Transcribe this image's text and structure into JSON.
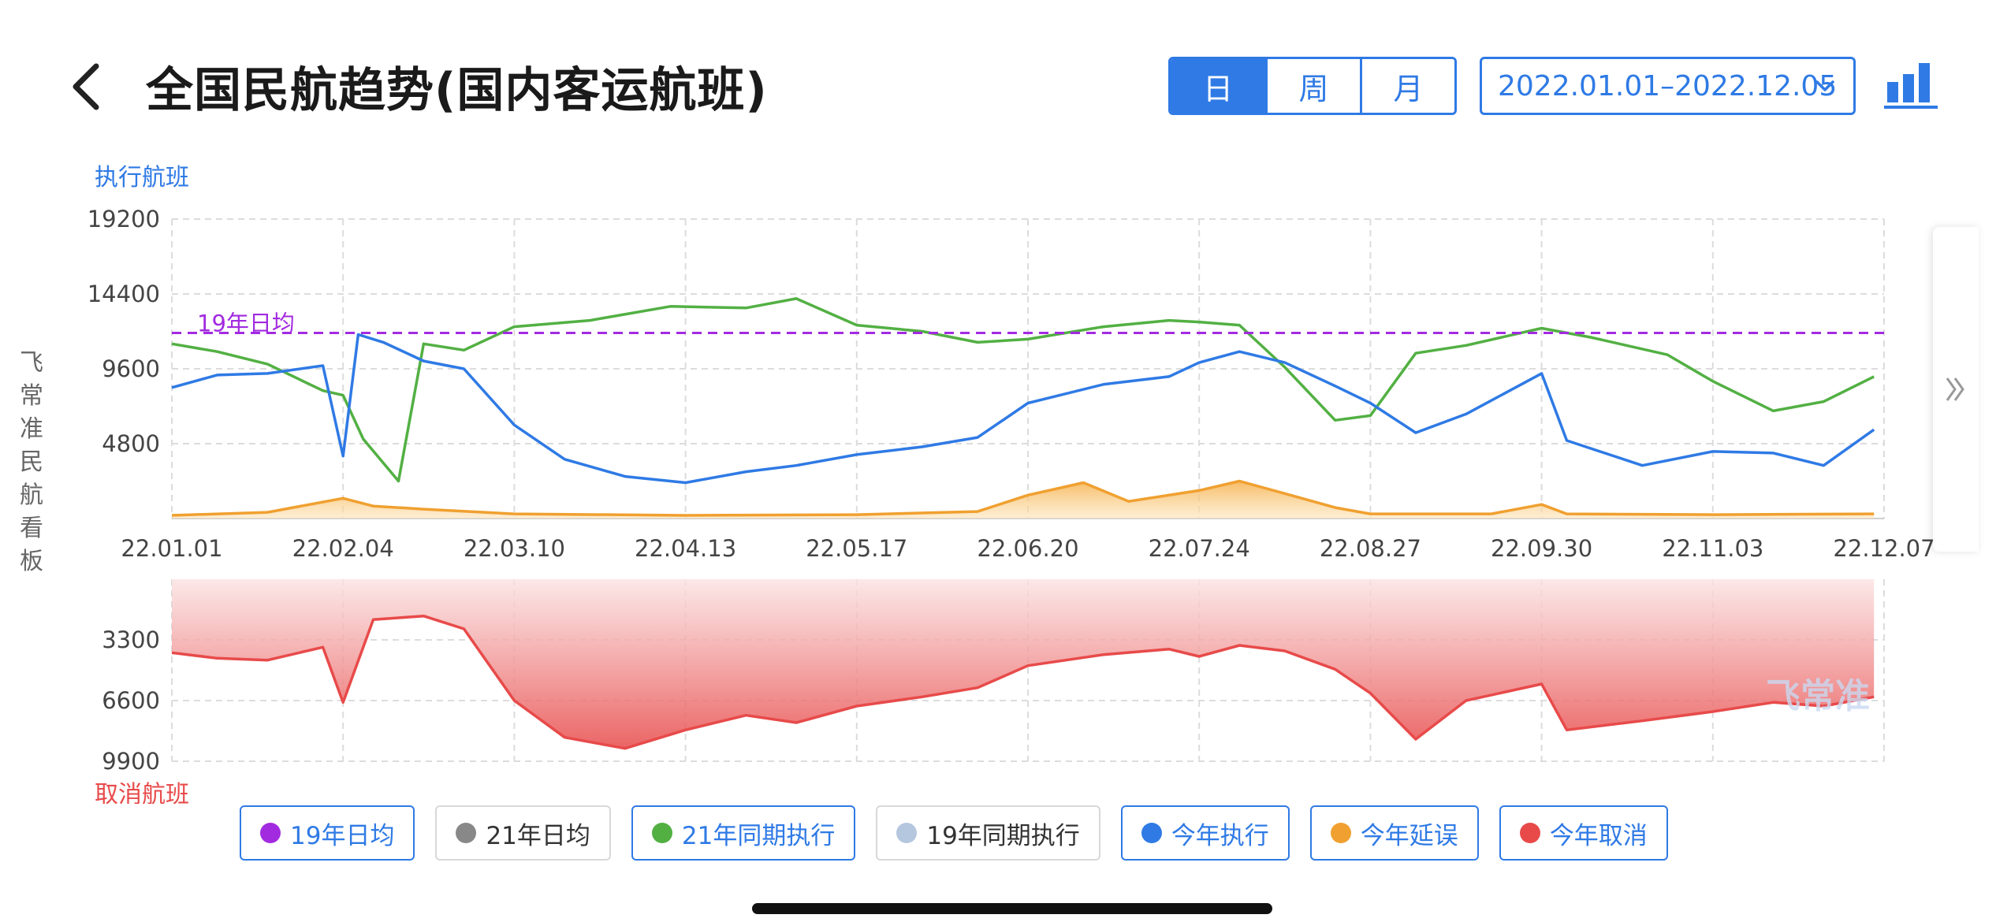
{
  "header": {
    "title": "全国民航趋势(国内客运航班)",
    "granularity": [
      {
        "label": "日",
        "active": true
      },
      {
        "label": "周",
        "active": false
      },
      {
        "label": "月",
        "active": false
      }
    ],
    "date_range": "2022.01.01–2022.12.05",
    "accent_color": "#2f7ae5",
    "icons": {
      "back": "back-arrow-icon",
      "chart": "bar-chart-icon",
      "chevron": "chevron-down-icon",
      "expand": "double-chevron-right-icon"
    }
  },
  "side_label": "飞常准民航看板",
  "chart_data": [
    {
      "type": "line",
      "title": "",
      "ylabel": "执行航班",
      "xlabel": "",
      "x_ticks": [
        "22.01.01",
        "22.02.04",
        "22.03.10",
        "22.04.13",
        "22.05.17",
        "22.06.20",
        "22.07.24",
        "22.08.27",
        "22.09.30",
        "22.11.03",
        "22.12.07"
      ],
      "yticks": [
        4800,
        9600,
        14400,
        19200
      ],
      "ylim": [
        0,
        19200
      ],
      "grid": true,
      "reference_lines": [
        {
          "name": "19年日均",
          "label": "19年日均",
          "value": 11900,
          "color": "#a22be0",
          "style": "dashed"
        }
      ],
      "series": [
        {
          "name": "21年同期执行",
          "color": "#52b043",
          "x": [
            "22.01.01",
            "22.01.10",
            "22.01.20",
            "22.01.31",
            "22.02.04",
            "22.02.08",
            "22.02.15",
            "22.02.20",
            "22.02.28",
            "22.03.10",
            "22.03.25",
            "22.04.10",
            "22.04.25",
            "22.05.05",
            "22.05.17",
            "22.05.30",
            "22.06.10",
            "22.06.20",
            "22.07.05",
            "22.07.18",
            "22.07.24",
            "22.08.01",
            "22.08.10",
            "22.08.20",
            "22.08.27",
            "22.09.05",
            "22.09.15",
            "22.09.30",
            "22.10.10",
            "22.10.25",
            "22.11.03",
            "22.11.15",
            "22.11.25",
            "22.12.05"
          ],
          "values": [
            11200,
            10700,
            9900,
            8200,
            7900,
            5100,
            2400,
            11200,
            10800,
            12300,
            12700,
            13600,
            13500,
            14100,
            12400,
            12000,
            11300,
            11500,
            12300,
            12700,
            12600,
            12400,
            9700,
            6300,
            6600,
            10600,
            11100,
            12200,
            11600,
            10500,
            8800,
            6900,
            7500,
            9100
          ]
        },
        {
          "name": "今年执行",
          "color": "#2f7ae5",
          "x": [
            "22.01.01",
            "22.01.10",
            "22.01.20",
            "22.01.31",
            "22.02.04",
            "22.02.07",
            "22.02.12",
            "22.02.20",
            "22.02.28",
            "22.03.10",
            "22.03.20",
            "22.04.01",
            "22.04.13",
            "22.04.25",
            "22.05.05",
            "22.05.17",
            "22.05.30",
            "22.06.10",
            "22.06.20",
            "22.07.05",
            "22.07.18",
            "22.07.24",
            "22.08.01",
            "22.08.10",
            "22.08.20",
            "22.08.27",
            "22.09.05",
            "22.09.15",
            "22.09.30",
            "22.10.05",
            "22.10.20",
            "22.11.03",
            "22.11.15",
            "22.11.25",
            "22.12.05"
          ],
          "values": [
            8400,
            9200,
            9300,
            9800,
            4000,
            11800,
            11300,
            10100,
            9600,
            6000,
            3800,
            2700,
            2300,
            3000,
            3400,
            4100,
            4600,
            5200,
            7400,
            8600,
            9100,
            10000,
            10700,
            10000,
            8500,
            7400,
            5500,
            6700,
            9300,
            5000,
            3400,
            4300,
            4200,
            3400,
            5700
          ]
        },
        {
          "name": "今年延误",
          "color": "#f0a030",
          "type": "area",
          "x": [
            "22.01.01",
            "22.01.20",
            "22.02.04",
            "22.02.10",
            "22.02.20",
            "22.03.10",
            "22.04.13",
            "22.05.17",
            "22.06.10",
            "22.06.20",
            "22.07.01",
            "22.07.10",
            "22.07.24",
            "22.08.01",
            "22.08.10",
            "22.08.20",
            "22.08.27",
            "22.09.20",
            "22.09.30",
            "22.10.05",
            "22.11.03",
            "22.12.05"
          ],
          "values": [
            200,
            400,
            1300,
            800,
            600,
            300,
            200,
            250,
            450,
            1500,
            2300,
            1100,
            1800,
            2400,
            1600,
            700,
            300,
            300,
            900,
            300,
            250,
            300
          ]
        }
      ]
    },
    {
      "type": "area",
      "title": "",
      "ylabel": "取消航班",
      "xlabel": "",
      "yticks": [
        3300,
        6600,
        9900
      ],
      "ylim": [
        0,
        9900
      ],
      "inverted": true,
      "grid": true,
      "series": [
        {
          "name": "今年取消",
          "color": "#e84a4a",
          "x": [
            "22.01.01",
            "22.01.10",
            "22.01.20",
            "22.01.31",
            "22.02.04",
            "22.02.10",
            "22.02.20",
            "22.02.28",
            "22.03.10",
            "22.03.20",
            "22.04.01",
            "22.04.13",
            "22.04.25",
            "22.05.05",
            "22.05.17",
            "22.05.30",
            "22.06.10",
            "22.06.20",
            "22.07.05",
            "22.07.18",
            "22.07.24",
            "22.08.01",
            "22.08.10",
            "22.08.20",
            "22.08.27",
            "22.09.05",
            "22.09.15",
            "22.09.30",
            "22.10.05",
            "22.10.20",
            "22.11.03",
            "22.11.15",
            "22.11.25",
            "22.12.05"
          ],
          "values": [
            4000,
            4300,
            4400,
            3700,
            6700,
            2200,
            2000,
            2700,
            6600,
            8600,
            9200,
            8200,
            7400,
            7800,
            6900,
            6400,
            5900,
            4700,
            4100,
            3800,
            4200,
            3600,
            3900,
            4900,
            6200,
            8700,
            6600,
            5700,
            8200,
            7700,
            7200,
            6700,
            6900,
            6400
          ]
        }
      ]
    }
  ],
  "legend": [
    {
      "label": "19年日均",
      "color": "#a22be0",
      "on": true
    },
    {
      "label": "21年日均",
      "color": "#888888",
      "on": false
    },
    {
      "label": "21年同期执行",
      "color": "#52b043",
      "on": true
    },
    {
      "label": "19年同期执行",
      "color": "#b5c7de",
      "on": false
    },
    {
      "label": "今年执行",
      "color": "#2f7ae5",
      "on": true
    },
    {
      "label": "今年延误",
      "color": "#f0a030",
      "on": true
    },
    {
      "label": "今年取消",
      "color": "#e84a4a",
      "on": true
    }
  ],
  "watermark": "飞常准"
}
